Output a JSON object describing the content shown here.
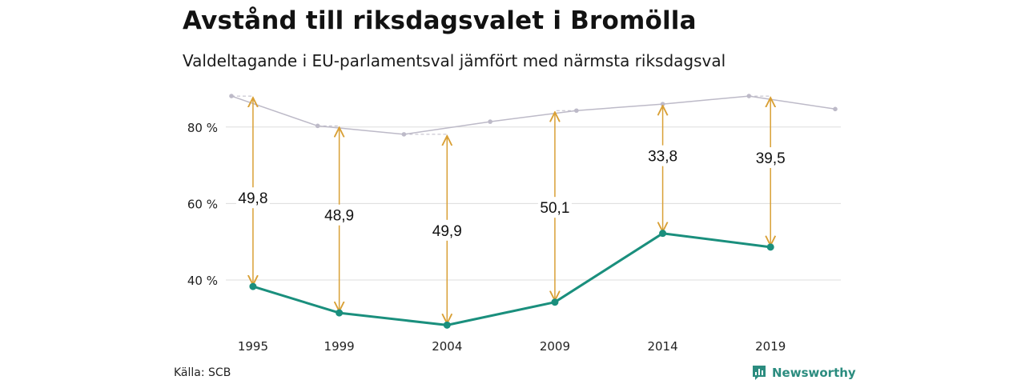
{
  "header": {
    "title": "Avstånd till riksdagsvalet i Bromölla",
    "subtitle": "Valdeltagande i EU-parlamentsval jämfört med närmsta riksdagsval"
  },
  "footer": {
    "source": "Källa: SCB",
    "brand": "Newsworthy"
  },
  "colors": {
    "eu_line": "#1a8f7d",
    "riksdag_line": "#bdbac8",
    "arrow": "#d9a036",
    "grid": "#dddddd",
    "brand": "#2b8c7f"
  },
  "chart_data": {
    "type": "line",
    "ylim": [
      22,
      90
    ],
    "yticks": [
      {
        "value": 40,
        "label": "40 %"
      },
      {
        "value": 60,
        "label": "60 %"
      },
      {
        "value": 80,
        "label": "80 %"
      }
    ],
    "x_tick_labels": [
      "1995",
      "1999",
      "2004",
      "2009",
      "2014",
      "2019"
    ],
    "series": [
      {
        "key": "riksdag",
        "points": [
          {
            "x": 1994,
            "y": 88.1
          },
          {
            "x": 1998,
            "y": 80.3
          },
          {
            "x": 2002,
            "y": 78.1
          },
          {
            "x": 2006,
            "y": 81.4
          },
          {
            "x": 2010,
            "y": 84.3
          },
          {
            "x": 2014,
            "y": 86.0
          },
          {
            "x": 2018,
            "y": 88.1
          },
          {
            "x": 2022,
            "y": 84.7
          }
        ]
      },
      {
        "key": "eu",
        "points": [
          {
            "x": 1995,
            "y": 38.3
          },
          {
            "x": 1999,
            "y": 31.4
          },
          {
            "x": 2004,
            "y": 28.2
          },
          {
            "x": 2009,
            "y": 34.2
          },
          {
            "x": 2014,
            "y": 52.2
          },
          {
            "x": 2019,
            "y": 48.6
          }
        ]
      }
    ],
    "gaps": [
      {
        "x": 1995,
        "from": 38.3,
        "to": 88.1,
        "label": "49,8",
        "label_at": 61.5
      },
      {
        "x": 1999,
        "from": 31.4,
        "to": 80.3,
        "label": "48,9",
        "label_at": 57.0
      },
      {
        "x": 2004,
        "from": 28.2,
        "to": 78.1,
        "label": "49,9",
        "label_at": 53.0
      },
      {
        "x": 2009,
        "from": 34.2,
        "to": 84.3,
        "label": "50,1",
        "label_at": 59.0
      },
      {
        "x": 2014,
        "from": 52.2,
        "to": 86.0,
        "label": "33,8",
        "label_at": 72.5
      },
      {
        "x": 2019,
        "from": 48.6,
        "to": 88.1,
        "label": "39,5",
        "label_at": 72.0
      }
    ]
  }
}
